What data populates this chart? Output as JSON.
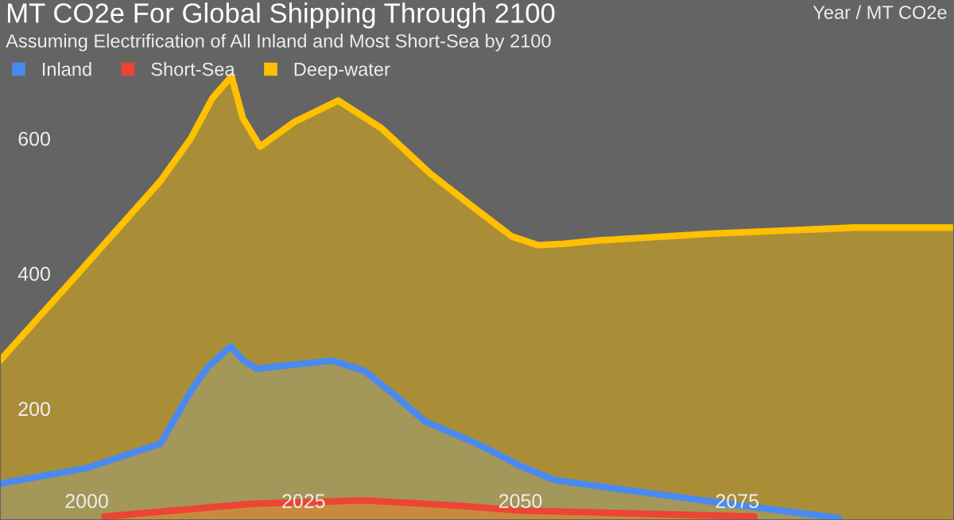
{
  "chart_data": {
    "type": "area",
    "title": "MT CO2e For Global Shipping Through 2100",
    "subtitle": "Assuming Electrification of All Inland and Most Short-Sea by 2100",
    "annotations": [
      "Year / MT CO2e"
    ],
    "xlim": [
      1990,
      2100
    ],
    "xticks": [
      2000,
      2025,
      2050,
      2075
    ],
    "ylim": [
      35,
      805
    ],
    "yticks": [
      200,
      400,
      600
    ],
    "grid": false,
    "legend": "top left",
    "series": [
      {
        "name": "Inland",
        "color": "#4a8af0",
        "x": [
          1990,
          2000,
          2008.5,
          2012,
          2014,
          2016.6,
          2018,
          2019.6,
          2023,
          2028.3,
          2032,
          2035.6,
          2039,
          2045,
          2050,
          2054,
          2063,
          2074,
          2086.7
        ],
        "values": [
          89,
          112,
          148,
          226,
          262,
          292,
          272,
          259,
          264,
          271,
          256,
          219,
          181,
          148,
          115,
          94,
          78,
          59,
          38
        ]
      },
      {
        "name": "Short-Sea",
        "color": "#ee4433",
        "x": [
          2002,
          2019,
          2032,
          2043,
          2050,
          2077
        ],
        "values": [
          40,
          59,
          64,
          56,
          49,
          40
        ]
      },
      {
        "name": "Deep-water",
        "color": "#ffc000",
        "x": [
          1990,
          1999,
          2008.5,
          2012,
          2014.5,
          2016.7,
          2018,
          2020,
          2024,
          2029,
          2034,
          2039.6,
          2045,
          2049,
          2052,
          2055,
          2059,
          2072,
          2088.5,
          2100
        ],
        "values": [
          271,
          400,
          537,
          600,
          660,
          692,
          630,
          588,
          625,
          656,
          615,
          548,
          494,
          455,
          442,
          444,
          449,
          459,
          468,
          468
        ]
      }
    ]
  }
}
